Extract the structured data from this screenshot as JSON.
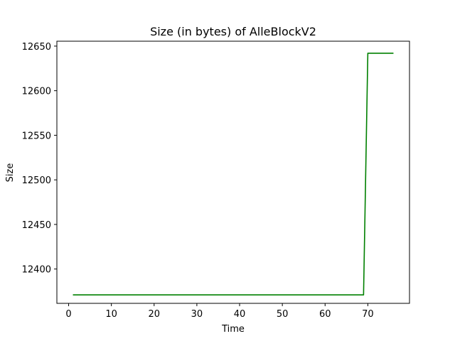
{
  "chart_data": {
    "type": "line",
    "title": "Size (in bytes) of AlleBlockV2",
    "xlabel": "Time",
    "ylabel": "Size",
    "xlim": [
      -2.75,
      79.75
    ],
    "ylim": [
      12361.5,
      12655.5
    ],
    "xticks": [
      0,
      10,
      20,
      30,
      40,
      50,
      60,
      70
    ],
    "yticks": [
      12400,
      12450,
      12500,
      12550,
      12600,
      12650
    ],
    "grid": false,
    "series": [
      {
        "color": "#008000",
        "points": [
          [
            1,
            12371
          ],
          [
            69,
            12371
          ],
          [
            70,
            12642
          ],
          [
            76,
            12642
          ]
        ]
      }
    ]
  }
}
